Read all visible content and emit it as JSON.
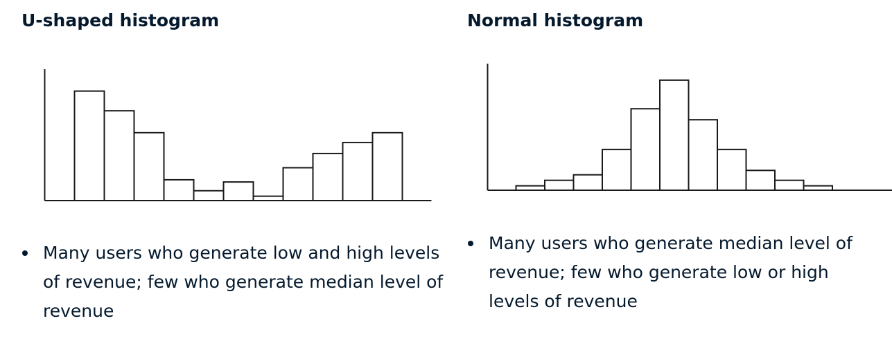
{
  "panels": [
    {
      "title": "U-shaped histogram",
      "bullet": "Many users who generate low and high levels of revenue; few who generate median level of revenue"
    },
    {
      "title": "Normal histogram",
      "bullet": "Many users who generate median level of revenue; few who generate low or high levels of revenue"
    }
  ],
  "chart_data": [
    {
      "type": "bar",
      "title": "U-shaped histogram",
      "values": [
        100,
        82,
        62,
        19,
        9,
        17,
        4,
        30,
        43,
        53,
        62
      ],
      "ylim": [
        0,
        120
      ],
      "grid": false,
      "legend": "none",
      "bar_fill": "#ffffff",
      "bar_stroke": "#1a1a1a"
    },
    {
      "type": "bar",
      "title": "Normal histogram",
      "values": [
        4,
        9,
        14,
        37,
        74,
        100,
        64,
        37,
        18,
        9,
        4
      ],
      "ylim": [
        0,
        115
      ],
      "grid": false,
      "legend": "none",
      "bar_fill": "#ffffff",
      "bar_stroke": "#1a1a1a"
    }
  ]
}
